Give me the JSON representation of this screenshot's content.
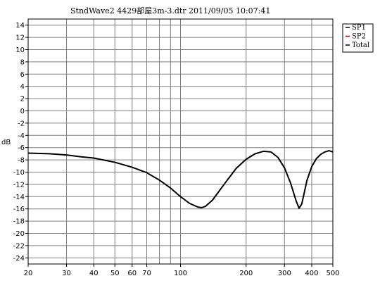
{
  "chart_data": {
    "type": "line",
    "title": "StndWave2  4429部屋3m-3.dtr      2011/09/05 10:07:41",
    "xlabel": "",
    "ylabel": "dB",
    "xscale": "log",
    "xlim": [
      20,
      500
    ],
    "ylim": [
      -25,
      15
    ],
    "x_tick_labels": [
      20,
      30,
      40,
      50,
      60,
      70,
      100,
      200,
      300,
      400,
      500
    ],
    "y_tick_labels": [
      14,
      12,
      10,
      8,
      6,
      4,
      2,
      0,
      -2,
      -4,
      -6,
      -8,
      -10,
      -12,
      -14,
      -16,
      -18,
      -20,
      -22,
      -24
    ],
    "x_gridlines": [
      20,
      30,
      40,
      50,
      60,
      70,
      80,
      90,
      100,
      200,
      300,
      400,
      500
    ],
    "y_gridlines": [
      14,
      12,
      10,
      8,
      6,
      4,
      2,
      0,
      -2,
      -4,
      -6,
      -8,
      -10,
      -12,
      -14,
      -16,
      -18,
      -20,
      -22,
      -24
    ],
    "grid": true,
    "legend_position": "top-right",
    "series": [
      {
        "name": "SP1",
        "color": "#000000",
        "values": []
      },
      {
        "name": "SP2",
        "color": "#c00000",
        "values": []
      },
      {
        "name": "Total",
        "color": "#000000",
        "x": [
          20,
          25,
          30,
          35,
          40,
          50,
          60,
          70,
          80,
          90,
          100,
          110,
          120,
          125,
          130,
          140,
          160,
          180,
          200,
          220,
          240,
          260,
          280,
          300,
          320,
          340,
          350,
          360,
          370,
          380,
          400,
          420,
          440,
          460,
          480,
          500
        ],
        "y": [
          -6.9,
          -7.0,
          -7.2,
          -7.5,
          -7.7,
          -8.4,
          -9.2,
          -10.1,
          -11.3,
          -12.6,
          -14.0,
          -15.1,
          -15.7,
          -15.8,
          -15.6,
          -14.6,
          -11.8,
          -9.4,
          -7.9,
          -7.0,
          -6.6,
          -6.7,
          -7.6,
          -9.3,
          -11.8,
          -14.8,
          -15.9,
          -15.2,
          -13.3,
          -11.4,
          -9.1,
          -7.8,
          -7.1,
          -6.7,
          -6.5,
          -6.7
        ]
      }
    ]
  }
}
